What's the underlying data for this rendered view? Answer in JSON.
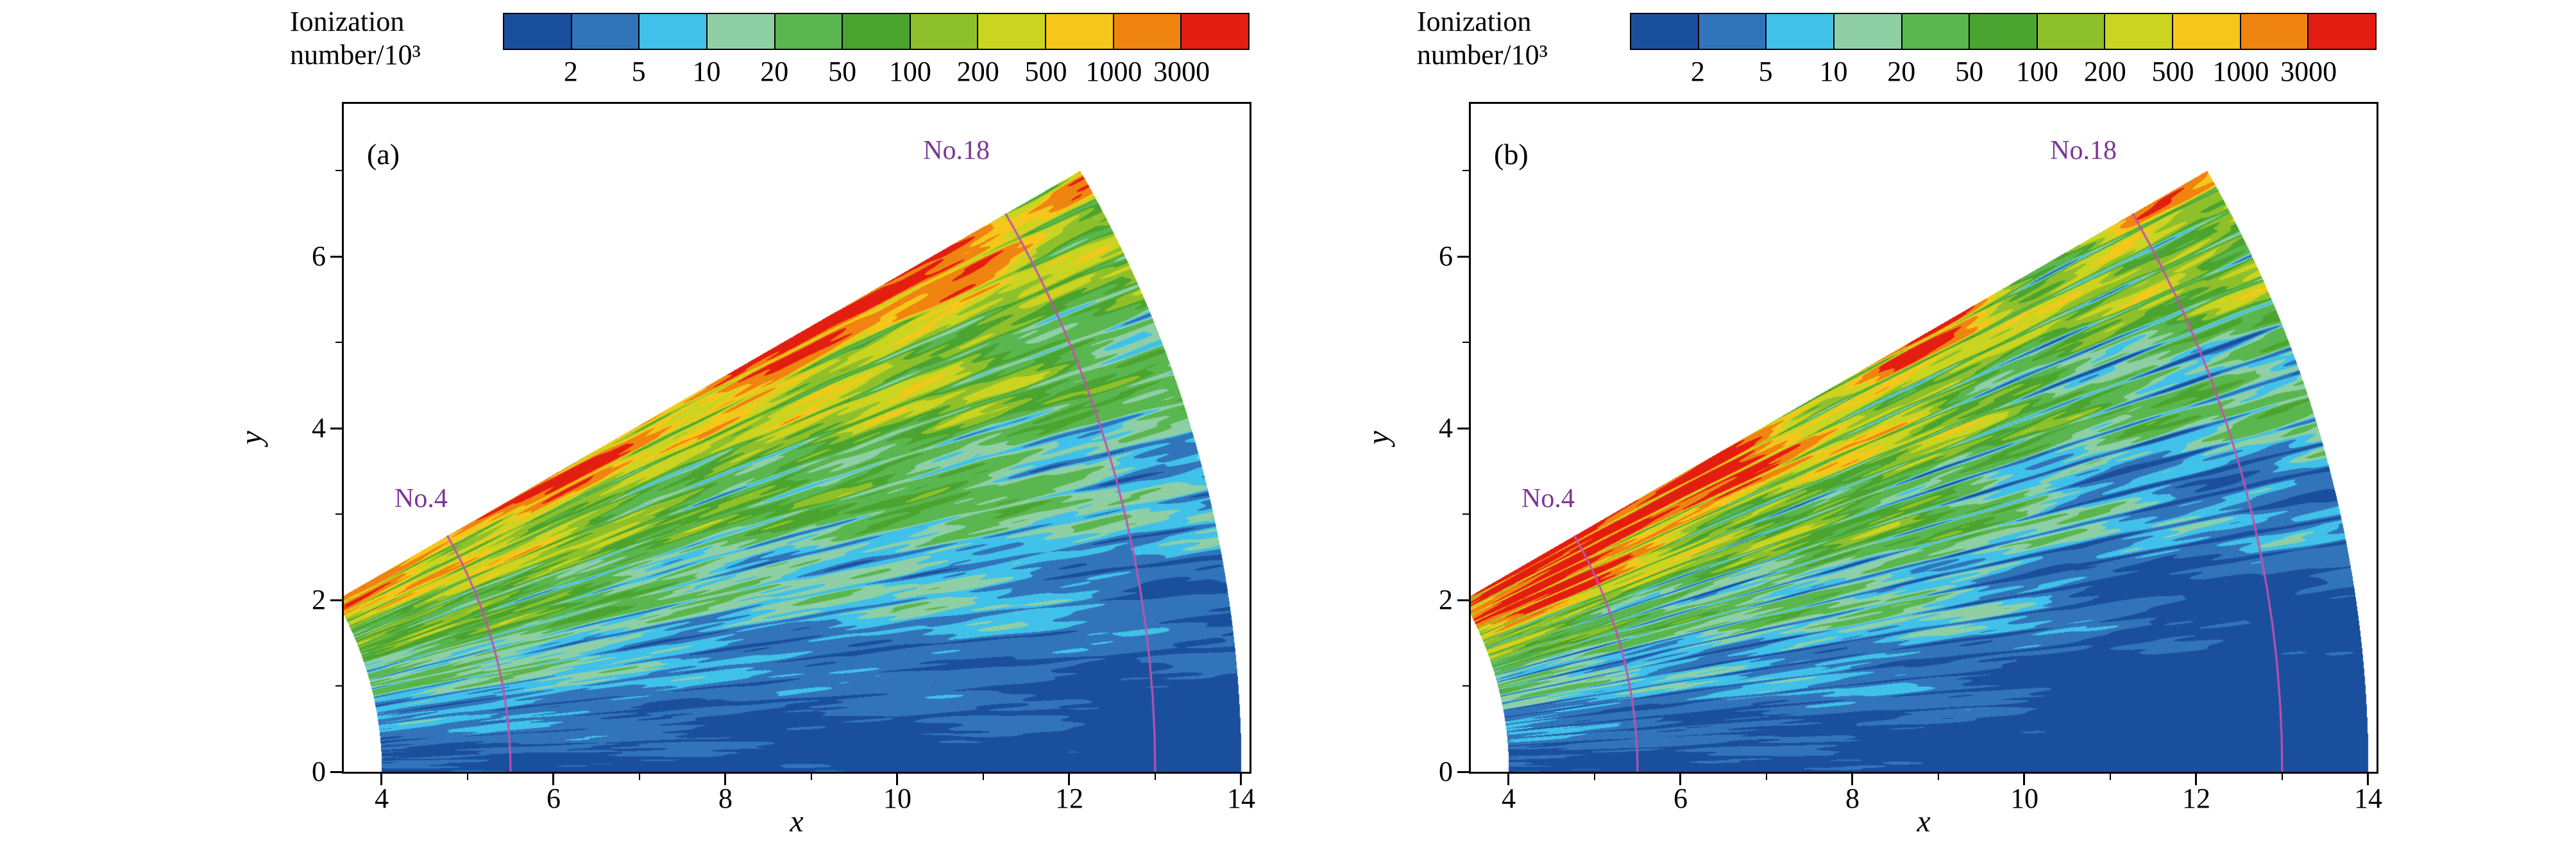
{
  "figure": {
    "background": "#ffffff"
  },
  "chart_data": [
    {
      "panel_label": "(a)",
      "type": "heatmap",
      "variant": "a",
      "xlabel": "x",
      "ylabel": "y",
      "xlim": [
        3.56,
        14.1
      ],
      "ylim": [
        0,
        7.78
      ],
      "xticks": [
        4,
        6,
        8,
        10,
        12,
        14
      ],
      "x_minor_ticks": [
        5,
        7,
        9,
        11,
        13
      ],
      "yticks": [
        0,
        2,
        4,
        6
      ],
      "y_minor_ticks": [
        1,
        3,
        5,
        7
      ],
      "domain": {
        "shape": "annular_sector",
        "r_inner": 4,
        "r_outer": 14,
        "theta_start_deg": 0,
        "theta_end_deg": 30
      },
      "colorbar": {
        "title_line1": "Ionization",
        "title_line2": "number/10³",
        "tick_labels": [
          "2",
          "5",
          "10",
          "20",
          "50",
          "100",
          "200",
          "500",
          "1000",
          "3000"
        ],
        "levels": [
          2,
          5,
          10,
          20,
          50,
          100,
          200,
          500,
          1000,
          3000
        ],
        "colors": [
          "#1a4f9e",
          "#3274b9",
          "#40c1e9",
          "#8ecfa6",
          "#5ab64e",
          "#4aa42f",
          "#8ec02b",
          "#cbd420",
          "#f5c71a",
          "#f08410",
          "#e31e10"
        ]
      },
      "field_description": "Ionization number rises from ~2 near the lower edge (dark blue) through cyan and green to yellow-orange bursts along the upper edge, with turbulent radial streaks and a red sliver at the outer tip.",
      "annotations": {
        "color": "#7d3596",
        "line_color": "#c352ae",
        "lines": [
          {
            "label": "No.4",
            "radius": 5.5,
            "label_x": 4.15,
            "label_y": 3.0
          },
          {
            "label": "No.18",
            "radius": 13.0,
            "label_x": 10.3,
            "label_y": 7.05
          }
        ]
      }
    },
    {
      "panel_label": "(b)",
      "type": "heatmap",
      "variant": "b",
      "xlabel": "x",
      "ylabel": "y",
      "xlim": [
        3.56,
        14.1
      ],
      "ylim": [
        0,
        7.78
      ],
      "xticks": [
        4,
        6,
        8,
        10,
        12,
        14
      ],
      "x_minor_ticks": [
        5,
        7,
        9,
        11,
        13
      ],
      "yticks": [
        0,
        2,
        4,
        6
      ],
      "y_minor_ticks": [
        1,
        3,
        5,
        7
      ],
      "domain": {
        "shape": "annular_sector",
        "r_inner": 4,
        "r_outer": 14,
        "theta_start_deg": 0,
        "theta_end_deg": 30
      },
      "colorbar": {
        "title_line1": "Ionization",
        "title_line2": "number/10³",
        "tick_labels": [
          "2",
          "5",
          "10",
          "20",
          "50",
          "100",
          "200",
          "500",
          "1000",
          "3000"
        ],
        "levels": [
          2,
          5,
          10,
          20,
          50,
          100,
          200,
          500,
          1000,
          3000
        ],
        "colors": [
          "#1a4f9e",
          "#3274b9",
          "#40c1e9",
          "#8ecfa6",
          "#5ab64e",
          "#4aa42f",
          "#8ec02b",
          "#cbd420",
          "#f5c71a",
          "#f08410",
          "#e31e10"
        ]
      },
      "field_description": "Similar wedge but with an intense red-orange hot spot near the upper-left (x≈4.5–6.5) exceeding 3000, and deeper dark-blue penetration over the right half.",
      "annotations": {
        "color": "#7d3596",
        "line_color": "#c352ae",
        "lines": [
          {
            "label": "No.4",
            "radius": 5.5,
            "label_x": 4.15,
            "label_y": 3.0
          },
          {
            "label": "No.18",
            "radius": 13.0,
            "label_x": 10.3,
            "label_y": 7.05
          }
        ]
      }
    }
  ]
}
